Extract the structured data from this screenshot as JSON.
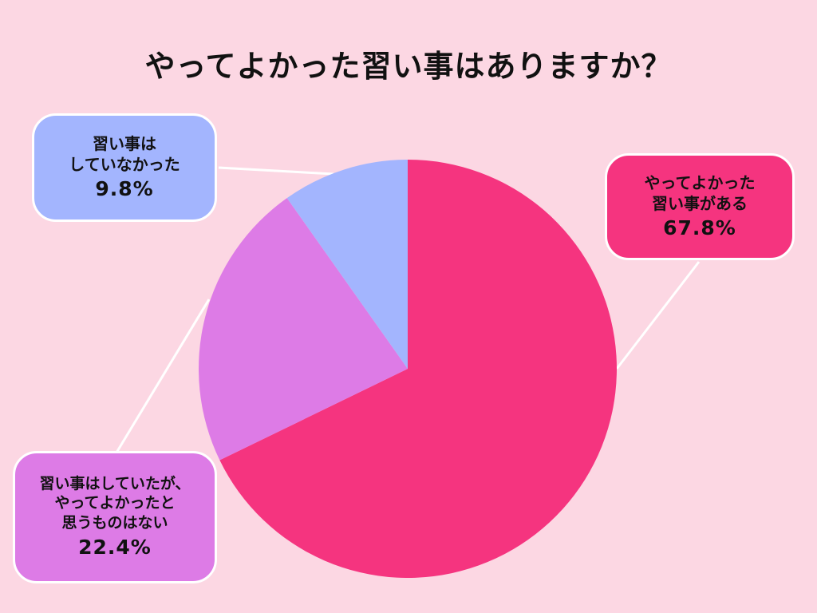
{
  "chart_data": {
    "type": "pie",
    "title": "やってよかった習い事はありますか？",
    "slices": [
      {
        "lines": [
          "やってよかった",
          "習い事がある"
        ],
        "value": 67.8,
        "label": "67.8%",
        "color": "#f5347f"
      },
      {
        "lines": [
          "習い事はしていたが、",
          "やってよかったと",
          "思うものはない"
        ],
        "value": 22.4,
        "label": "22.4%",
        "color": "#dd7be6"
      },
      {
        "lines": [
          "習い事は",
          "していなかった"
        ],
        "value": 9.8,
        "label": "9.8%",
        "color": "#a3b5fe"
      }
    ],
    "start_angle_deg": 0,
    "direction": "clockwise",
    "background_color": "#fcd7e3",
    "leader_line_color": "#ffffff"
  }
}
